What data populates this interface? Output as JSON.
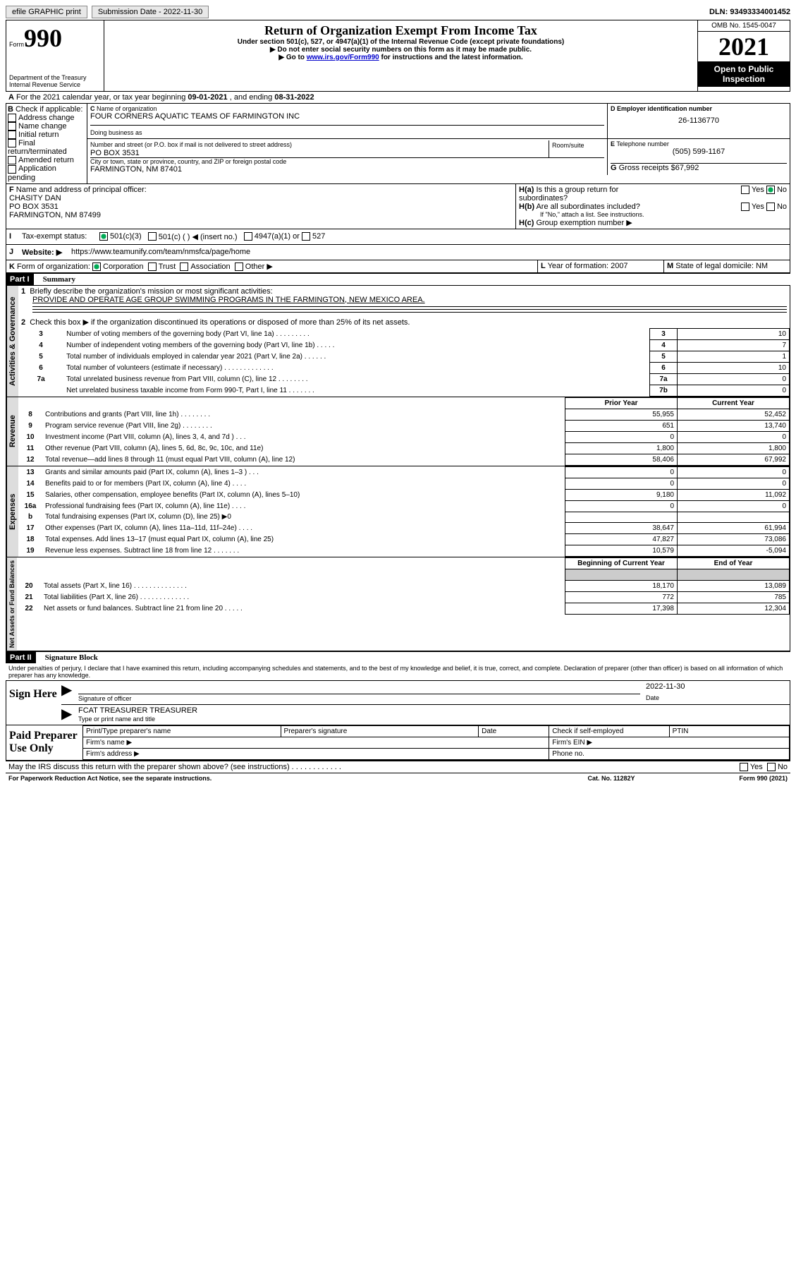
{
  "topbar": {
    "efile": "efile GRAPHIC print",
    "subdate_lbl": "Submission Date - ",
    "subdate": "2022-11-30",
    "dln_lbl": "DLN: ",
    "dln": "93493334001452"
  },
  "hdr": {
    "form": "Form",
    "num": "990",
    "title": "Return of Organization Exempt From Income Tax",
    "sub1": "Under section 501(c), 527, or 4947(a)(1) of the Internal Revenue Code (except private foundations)",
    "sub2": "▶ Do not enter social security numbers on this form as it may be made public.",
    "sub3": "▶ Go to ",
    "link": "www.irs.gov/Form990",
    "sub3b": " for instructions and the latest information.",
    "dept": "Department of the Treasury",
    "irs": "Internal Revenue Service",
    "omb": "OMB No. 1545-0047",
    "year": "2021",
    "inspect": "Open to Public Inspection"
  },
  "A": {
    "text": "For the 2021 calendar year, or tax year beginning ",
    "begin": "09-01-2021",
    "mid": " , and ending ",
    "end": "08-31-2022"
  },
  "B": {
    "lbl": "Check if applicable:",
    "items": [
      "Address change",
      "Name change",
      "Initial return",
      "Final return/terminated",
      "Amended return",
      "Application pending"
    ]
  },
  "C": {
    "name_lbl": "Name of organization",
    "name": "FOUR CORNERS AQUATIC TEAMS OF FARMINGTON INC",
    "dba": "Doing business as",
    "addr_lbl": "Number and street (or P.O. box if mail is not delivered to street address)",
    "room": "Room/suite",
    "addr": "PO BOX 3531",
    "city_lbl": "City or town, state or province, country, and ZIP or foreign postal code",
    "city": "FARMINGTON, NM  87401"
  },
  "D": {
    "lbl": "Employer identification number",
    "val": "26-1136770"
  },
  "E": {
    "lbl": "Telephone number",
    "val": "(505) 599-1167"
  },
  "G": {
    "lbl": "Gross receipts $",
    "val": "67,992"
  },
  "F": {
    "lbl": "Name and address of principal officer:",
    "name": "CHASITY DAN",
    "addr": "PO BOX 3531",
    "city": "FARMINGTON, NM  87499"
  },
  "H": {
    "a": "Is this a group return for subordinates?",
    "b": "Are all subordinates included?",
    "note": "If \"No,\" attach a list. See instructions.",
    "c": "Group exemption number ▶",
    "yes": "Yes",
    "no": "No"
  },
  "I": {
    "lbl": "Tax-exempt status:",
    "a": "501(c)(3)",
    "b": "501(c) (  ) ◀ (insert no.)",
    "c": "4947(a)(1) or",
    "d": "527"
  },
  "J": {
    "lbl": "Website: ▶",
    "val": "https://www.teamunify.com/team/nmsfca/page/home"
  },
  "K": {
    "lbl": "Form of organization:",
    "opts": [
      "Corporation",
      "Trust",
      "Association",
      "Other ▶"
    ]
  },
  "L": {
    "lbl": "Year of formation:",
    "val": "2007"
  },
  "M": {
    "lbl": "State of legal domicile:",
    "val": "NM"
  },
  "part1": {
    "lbl": "Part I",
    "title": "Summary",
    "l1": "Briefly describe the organization's mission or most significant activities:",
    "mission": "PROVIDE AND OPERATE AGE GROUP SWIMMING PROGRAMS IN THE FARMINGTON, NEW MEXICO AREA.",
    "l2": "Check this box ▶         if the organization discontinued its operations or disposed of more than 25% of its net assets.",
    "rows": [
      {
        "n": "3",
        "t": "Number of voting members of the governing body (Part VI, line 1a)  .   .   .   .   .   .   .   .   .",
        "box": "3",
        "v": "10"
      },
      {
        "n": "4",
        "t": "Number of independent voting members of the governing body (Part VI, line 1b)  .   .   .   .   .",
        "box": "4",
        "v": "7"
      },
      {
        "n": "5",
        "t": "Total number of individuals employed in calendar year 2021 (Part V, line 2a)  .   .   .   .   .   .",
        "box": "5",
        "v": "1"
      },
      {
        "n": "6",
        "t": "Total number of volunteers (estimate if necessary)  .   .   .   .   .   .   .   .   .   .   .   .   .",
        "box": "6",
        "v": "10"
      },
      {
        "n": "7a",
        "t": "Total unrelated business revenue from Part VIII, column (C), line 12  .   .   .   .   .   .   .   .",
        "box": "7a",
        "v": "0"
      },
      {
        "n": "",
        "t": "Net unrelated business taxable income from Form 990-T, Part I, line 11  .   .   .   .   .   .   .",
        "box": "7b",
        "v": "0"
      }
    ],
    "prior": "Prior Year",
    "curr": "Current Year",
    "rev": [
      {
        "n": "8",
        "t": "Contributions and grants (Part VIII, line 1h)  .   .   .   .   .   .   .   .",
        "p": "55,955",
        "c": "52,452"
      },
      {
        "n": "9",
        "t": "Program service revenue (Part VIII, line 2g)  .   .   .   .   .   .   .   .",
        "p": "651",
        "c": "13,740"
      },
      {
        "n": "10",
        "t": "Investment income (Part VIII, column (A), lines 3, 4, and 7d )  .   .   .",
        "p": "0",
        "c": "0"
      },
      {
        "n": "11",
        "t": "Other revenue (Part VIII, column (A), lines 5, 6d, 8c, 9c, 10c, and 11e)",
        "p": "1,800",
        "c": "1,800"
      },
      {
        "n": "12",
        "t": "Total revenue—add lines 8 through 11 (must equal Part VIII, column (A), line 12)",
        "p": "58,406",
        "c": "67,992"
      }
    ],
    "exp": [
      {
        "n": "13",
        "t": "Grants and similar amounts paid (Part IX, column (A), lines 1–3 )  .   .   .",
        "p": "0",
        "c": "0"
      },
      {
        "n": "14",
        "t": "Benefits paid to or for members (Part IX, column (A), line 4)  .   .   .   .",
        "p": "0",
        "c": "0"
      },
      {
        "n": "15",
        "t": "Salaries, other compensation, employee benefits (Part IX, column (A), lines 5–10)",
        "p": "9,180",
        "c": "11,092"
      },
      {
        "n": "16a",
        "t": "Professional fundraising fees (Part IX, column (A), line 11e)  .   .   .   .",
        "p": "0",
        "c": "0"
      },
      {
        "n": "b",
        "t": "Total fundraising expenses (Part IX, column (D), line 25) ▶0",
        "p": "",
        "c": "",
        "gray": true
      },
      {
        "n": "17",
        "t": "Other expenses (Part IX, column (A), lines 11a–11d, 11f–24e)  .   .   .   .",
        "p": "38,647",
        "c": "61,994"
      },
      {
        "n": "18",
        "t": "Total expenses. Add lines 13–17 (must equal Part IX, column (A), line 25)",
        "p": "47,827",
        "c": "73,086"
      },
      {
        "n": "19",
        "t": "Revenue less expenses. Subtract line 18 from line 12  .   .   .   .   .   .   .",
        "p": "10,579",
        "c": "-5,094"
      }
    ],
    "boy": "Beginning of Current Year",
    "eoy": "End of Year",
    "net": [
      {
        "n": "20",
        "t": "Total assets (Part X, line 16)  .   .   .   .   .   .   .   .   .   .   .   .   .   .",
        "p": "18,170",
        "c": "13,089"
      },
      {
        "n": "21",
        "t": "Total liabilities (Part X, line 26)  .   .   .   .   .   .   .   .   .   .   .   .   .",
        "p": "772",
        "c": "785"
      },
      {
        "n": "22",
        "t": "Net assets or fund balances. Subtract line 21 from line 20  .   .   .   .   .",
        "p": "17,398",
        "c": "12,304"
      }
    ],
    "tab_gov": "Activities & Governance",
    "tab_rev": "Revenue",
    "tab_exp": "Expenses",
    "tab_net": "Net Assets or Fund Balances"
  },
  "part2": {
    "lbl": "Part II",
    "title": "Signature Block",
    "decl": "Under penalties of perjury, I declare that I have examined this return, including accompanying schedules and statements, and to the best of my knowledge and belief, it is true, correct, and complete. Declaration of preparer (other than officer) is based on all information of which preparer has any knowledge.",
    "sign": "Sign Here",
    "sigoff": "Signature of officer",
    "date": "Date",
    "sigdate": "2022-11-30",
    "typename": "Type or print name and title",
    "officer": "FCAT TREASURER  TREASURER",
    "paid": "Paid Preparer Use Only",
    "prep_name": "Print/Type preparer's name",
    "prep_sig": "Preparer's signature",
    "check_self": "Check         if self-employed",
    "ptin": "PTIN",
    "firm_name": "Firm's name  ▶",
    "firm_ein": "Firm's EIN ▶",
    "firm_addr": "Firm's address ▶",
    "phone": "Phone no.",
    "discuss": "May the IRS discuss this return with the preparer shown above? (see instructions)  .   .   .   .   .   .   .   .   .   .   .   .",
    "paperwork": "For Paperwork Reduction Act Notice, see the separate instructions.",
    "cat": "Cat. No. 11282Y",
    "formno": "Form 990 (2021)"
  }
}
